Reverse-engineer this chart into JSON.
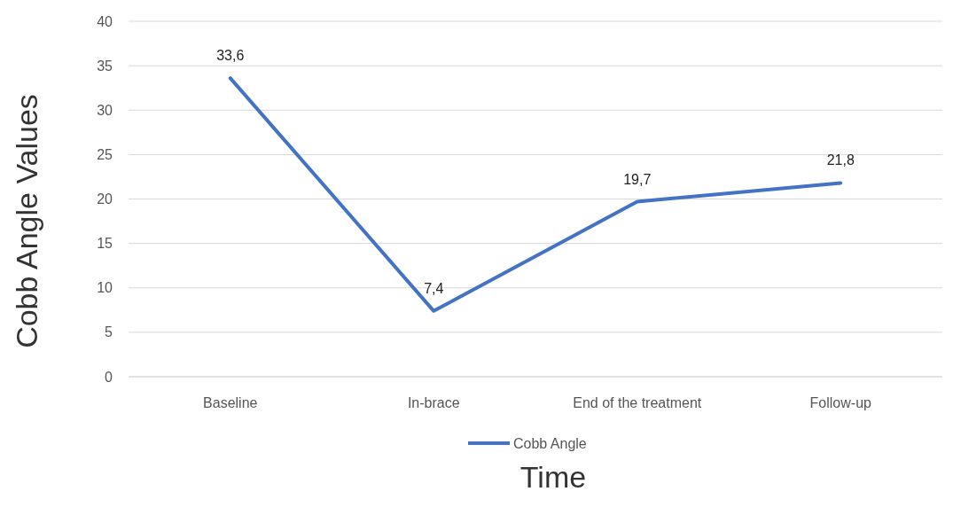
{
  "chart_data": {
    "type": "line",
    "xlabel": "Time",
    "ylabel": "Cobb Angle Values",
    "categories": [
      "Baseline",
      "In-brace",
      "End of the treatment",
      "Follow-up"
    ],
    "series": [
      {
        "name": "Cobb Angle",
        "color": "#4472c4",
        "values": [
          33.6,
          7.4,
          19.7,
          21.8
        ],
        "value_labels": [
          "33,6",
          "7,4",
          "19,7",
          "21,8"
        ]
      }
    ],
    "ylim": [
      0,
      40
    ],
    "yticks": [
      0,
      5,
      10,
      15,
      20,
      25,
      30,
      35,
      40
    ],
    "grid": "y",
    "legend": "bottom",
    "marker": "none",
    "line_style": "solid"
  }
}
